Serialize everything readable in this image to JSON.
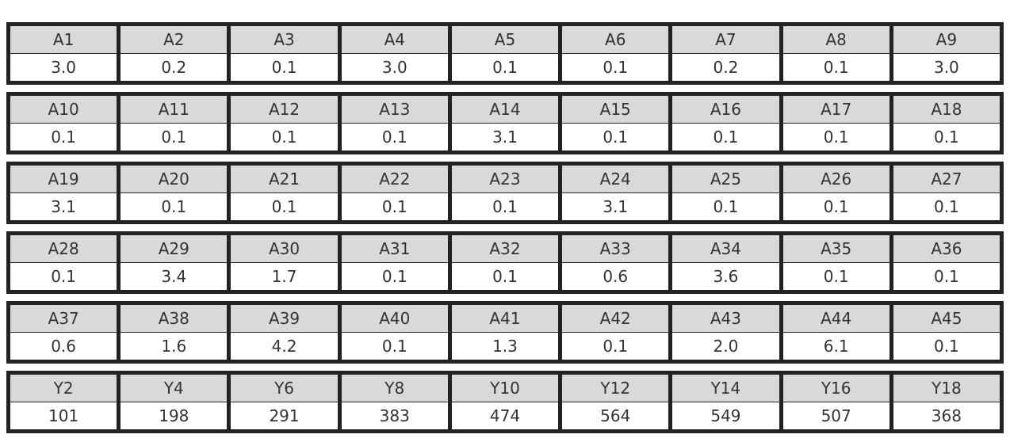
{
  "tables": [
    {
      "headers": [
        "A1",
        "A2",
        "A3",
        "A4",
        "A5",
        "A6",
        "A7",
        "A8",
        "A9"
      ],
      "values": [
        "3.0",
        "0.2",
        "0.1",
        "3.0",
        "0.1",
        "0.1",
        "0.2",
        "0.1",
        "3.0"
      ]
    },
    {
      "headers": [
        "A10",
        "A11",
        "A12",
        "A13",
        "A14",
        "A15",
        "A16",
        "A17",
        "A18"
      ],
      "values": [
        "0.1",
        "0.1",
        "0.1",
        "0.1",
        "3.1",
        "0.1",
        "0.1",
        "0.1",
        "0.1"
      ]
    },
    {
      "headers": [
        "A19",
        "A20",
        "A21",
        "A22",
        "A23",
        "A24",
        "A25",
        "A26",
        "A27"
      ],
      "values": [
        "3.1",
        "0.1",
        "0.1",
        "0.1",
        "0.1",
        "3.1",
        "0.1",
        "0.1",
        "0.1"
      ]
    },
    {
      "headers": [
        "A28",
        "A29",
        "A30",
        "A31",
        "A32",
        "A33",
        "A34",
        "A35",
        "A36"
      ],
      "values": [
        "0.1",
        "3.4",
        "1.7",
        "0.1",
        "0.1",
        "0.6",
        "3.6",
        "0.1",
        "0.1"
      ]
    },
    {
      "headers": [
        "A37",
        "A38",
        "A39",
        "A40",
        "A41",
        "A42",
        "A43",
        "A44",
        "A45"
      ],
      "values": [
        "0.6",
        "1.6",
        "4.2",
        "0.1",
        "1.3",
        "0.1",
        "2.0",
        "6.1",
        "0.1"
      ]
    },
    {
      "headers": [
        "Y2",
        "Y4",
        "Y6",
        "Y8",
        "Y10",
        "Y12",
        "Y14",
        "Y16",
        "Y18"
      ],
      "values": [
        "101",
        "198",
        "291",
        "383",
        "474",
        "564",
        "549",
        "507",
        "368"
      ]
    }
  ]
}
